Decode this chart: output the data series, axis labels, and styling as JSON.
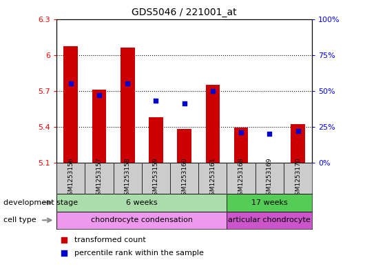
{
  "title": "GDS5046 / 221001_at",
  "samples": [
    "GSM1253156",
    "GSM1253157",
    "GSM1253158",
    "GSM1253159",
    "GSM1253160",
    "GSM1253161",
    "GSM1253168",
    "GSM1253169",
    "GSM1253170"
  ],
  "transformed_count": [
    6.07,
    5.71,
    6.06,
    5.48,
    5.38,
    5.75,
    5.39,
    5.1,
    5.42
  ],
  "percentile_rank": [
    55,
    47,
    55,
    43,
    41,
    50,
    21,
    20,
    22
  ],
  "ylim": [
    5.1,
    6.3
  ],
  "yticks": [
    5.1,
    5.4,
    5.7,
    6.0,
    6.3
  ],
  "ytick_labels": [
    "5.1",
    "5.4",
    "5.7",
    "6",
    "6.3"
  ],
  "y2lim": [
    0,
    100
  ],
  "y2ticks": [
    0,
    25,
    50,
    75,
    100
  ],
  "y2tick_labels": [
    "0%",
    "25%",
    "50%",
    "75%",
    "100%"
  ],
  "bar_color": "#cc0000",
  "dot_color": "#0000cc",
  "bar_width": 0.5,
  "development_stage_groups": [
    {
      "label": "6 weeks",
      "start": 0,
      "end": 5,
      "color": "#aaeea a"
    },
    {
      "label": "17 weeks",
      "start": 6,
      "end": 8,
      "color": "#55cc55"
    }
  ],
  "cell_type_groups": [
    {
      "label": "chondrocyte condensation",
      "start": 0,
      "end": 5,
      "color": "#ee99ee"
    },
    {
      "label": "articular chondrocyte",
      "start": 6,
      "end": 8,
      "color": "#cc55cc"
    }
  ],
  "legend_items": [
    {
      "label": "transformed count",
      "color": "#cc0000"
    },
    {
      "label": "percentile rank within the sample",
      "color": "#0000cc"
    }
  ],
  "separator_idx": 5.5,
  "dev_stage_colors": [
    "#aaddaa",
    "#55cc55"
  ],
  "cell_type_colors": [
    "#ee99ee",
    "#cc55cc"
  ]
}
